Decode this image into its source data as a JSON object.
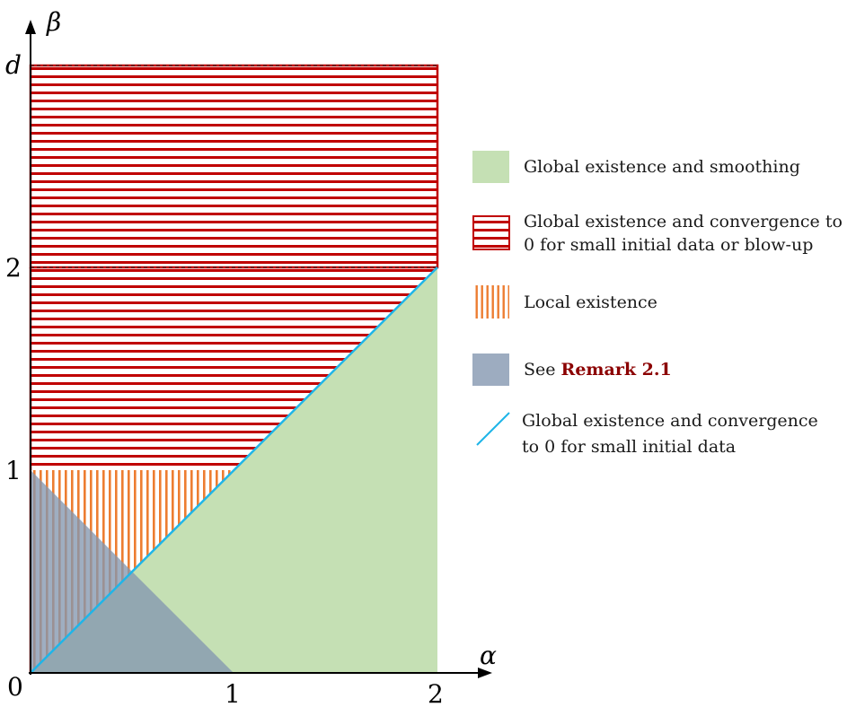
{
  "axes": {
    "x_label": "α",
    "y_label": "β",
    "x_ticks": [
      "0",
      "1",
      "2"
    ],
    "y_ticks": [
      "1",
      "2",
      "d"
    ]
  },
  "legend": {
    "green": "Global existence and smoothing",
    "red_line1": "Global existence and convergence to",
    "red_line2": "0 for small initial data or blow-up",
    "orange": "Local existence",
    "blue_prefix": "See ",
    "blue_ref": "Remark 2.1",
    "line_line1": "Global existence and convergence",
    "line_line2": "to 0 for small initial data"
  },
  "colors": {
    "green": "#c5e0b4",
    "red": "#c00000",
    "orange": "#ed7d31",
    "blue_gray": "#8497b0",
    "cyan": "#1fb5e8"
  }
}
